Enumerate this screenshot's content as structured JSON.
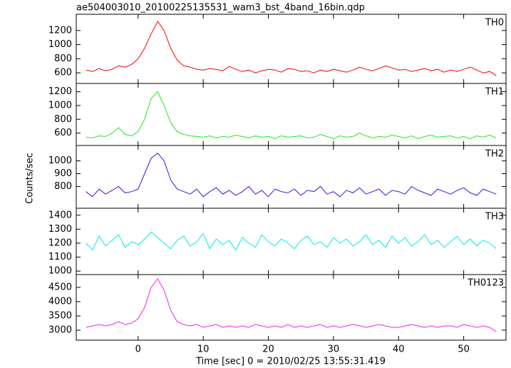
{
  "chart_data": [
    {
      "type": "line",
      "title": "ae504003010_20100225135531_wam3_bst_4band_16bin.qdp",
      "x": [
        -8,
        -7,
        -6,
        -5,
        -4,
        -3,
        -2,
        -1,
        0,
        1,
        2,
        3,
        4,
        5,
        6,
        7,
        8,
        9,
        10,
        11,
        12,
        13,
        14,
        15,
        16,
        17,
        18,
        19,
        20,
        21,
        22,
        23,
        24,
        25,
        26,
        27,
        28,
        29,
        30,
        31,
        32,
        33,
        34,
        35,
        36,
        37,
        38,
        39,
        40,
        41,
        42,
        43,
        44,
        45,
        46,
        47,
        48,
        49,
        50,
        51,
        52,
        53,
        54,
        55
      ],
      "series": [
        {
          "name": "TH0",
          "color": "#ff0000",
          "values": [
            640,
            620,
            660,
            630,
            650,
            700,
            680,
            720,
            800,
            950,
            1150,
            1330,
            1200,
            950,
            780,
            700,
            680,
            650,
            640,
            660,
            650,
            630,
            690,
            650,
            620,
            640,
            600,
            630,
            650,
            640,
            610,
            660,
            650,
            620,
            630,
            600,
            640,
            620,
            650,
            630,
            610,
            640,
            680,
            650,
            630,
            660,
            700,
            670,
            640,
            650,
            620,
            640,
            660,
            630,
            650,
            610,
            640,
            620,
            650,
            680,
            640,
            600,
            620,
            560
          ]
        }
      ],
      "xlim": [
        -9.5,
        56.5
      ],
      "xticks": [
        0,
        10,
        20,
        30,
        40,
        50
      ],
      "ylim": [
        450,
        1430
      ],
      "yticks": [
        600,
        800,
        1000,
        1200
      ]
    },
    {
      "type": "line",
      "x": [
        -8,
        -7,
        -6,
        -5,
        -4,
        -3,
        -2,
        -1,
        0,
        1,
        2,
        3,
        4,
        5,
        6,
        7,
        8,
        9,
        10,
        11,
        12,
        13,
        14,
        15,
        16,
        17,
        18,
        19,
        20,
        21,
        22,
        23,
        24,
        25,
        26,
        27,
        28,
        29,
        30,
        31,
        32,
        33,
        34,
        35,
        36,
        37,
        38,
        39,
        40,
        41,
        42,
        43,
        44,
        45,
        46,
        47,
        48,
        49,
        50,
        51,
        52,
        53,
        54,
        55
      ],
      "series": [
        {
          "name": "TH1",
          "color": "#22e622",
          "values": [
            540,
            530,
            560,
            550,
            600,
            680,
            580,
            560,
            620,
            800,
            1100,
            1200,
            1000,
            750,
            620,
            580,
            560,
            550,
            540,
            560,
            530,
            550,
            540,
            570,
            550,
            530,
            560,
            540,
            550,
            520,
            560,
            540,
            550,
            560,
            530,
            540,
            580,
            550,
            520,
            560,
            540,
            550,
            600,
            560,
            530,
            550,
            540,
            570,
            550,
            530,
            560,
            520,
            550,
            570,
            540,
            550,
            560,
            530,
            550,
            520,
            560,
            540,
            570,
            530
          ]
        }
      ],
      "xlim": [
        -9.5,
        56.5
      ],
      "xticks": [
        0,
        10,
        20,
        30,
        40,
        50
      ],
      "ylim": [
        420,
        1320
      ],
      "yticks": [
        600,
        800,
        1000,
        1200
      ]
    },
    {
      "type": "line",
      "y_label": "Counts/sec",
      "x": [
        -8,
        -7,
        -6,
        -5,
        -4,
        -3,
        -2,
        -1,
        0,
        1,
        2,
        3,
        4,
        5,
        6,
        7,
        8,
        9,
        10,
        11,
        12,
        13,
        14,
        15,
        16,
        17,
        18,
        19,
        20,
        21,
        22,
        23,
        24,
        25,
        26,
        27,
        28,
        29,
        30,
        31,
        32,
        33,
        34,
        35,
        36,
        37,
        38,
        39,
        40,
        41,
        42,
        43,
        44,
        45,
        46,
        47,
        48,
        49,
        50,
        51,
        52,
        53,
        54,
        55
      ],
      "series": [
        {
          "name": "TH2",
          "color": "#2222dd",
          "values": [
            760,
            720,
            780,
            740,
            770,
            800,
            750,
            760,
            780,
            900,
            1020,
            1060,
            1000,
            850,
            780,
            760,
            740,
            780,
            720,
            760,
            790,
            740,
            770,
            730,
            760,
            800,
            740,
            770,
            720,
            780,
            760,
            750,
            780,
            730,
            770,
            760,
            800,
            740,
            760,
            720,
            770,
            750,
            790,
            740,
            760,
            780,
            730,
            770,
            760,
            740,
            800,
            770,
            750,
            730,
            780,
            760,
            740,
            770,
            790,
            750,
            730,
            780,
            760,
            740
          ]
        }
      ],
      "xlim": [
        -9.5,
        56.5
      ],
      "xticks": [
        0,
        10,
        20,
        30,
        40,
        50
      ],
      "ylim": [
        630,
        1120
      ],
      "yticks": [
        800,
        900,
        1000
      ]
    },
    {
      "type": "line",
      "x": [
        -8,
        -7,
        -6,
        -5,
        -4,
        -3,
        -2,
        -1,
        0,
        1,
        2,
        3,
        4,
        5,
        6,
        7,
        8,
        9,
        10,
        11,
        12,
        13,
        14,
        15,
        16,
        17,
        18,
        19,
        20,
        21,
        22,
        23,
        24,
        25,
        26,
        27,
        28,
        29,
        30,
        31,
        32,
        33,
        34,
        35,
        36,
        37,
        38,
        39,
        40,
        41,
        42,
        43,
        44,
        45,
        46,
        47,
        48,
        49,
        50,
        51,
        52,
        53,
        54,
        55
      ],
      "series": [
        {
          "name": "TH3",
          "color": "#00e8e8",
          "values": [
            1200,
            1150,
            1250,
            1180,
            1220,
            1260,
            1170,
            1210,
            1190,
            1230,
            1280,
            1240,
            1200,
            1160,
            1220,
            1250,
            1180,
            1210,
            1270,
            1160,
            1230,
            1190,
            1220,
            1150,
            1240,
            1200,
            1170,
            1260,
            1210,
            1180,
            1230,
            1200,
            1160,
            1220,
            1250,
            1190,
            1210,
            1170,
            1240,
            1200,
            1230,
            1180,
            1210,
            1260,
            1190,
            1220,
            1170,
            1250,
            1200,
            1240,
            1180,
            1210,
            1260,
            1190,
            1220,
            1170,
            1210,
            1250,
            1190,
            1230,
            1180,
            1220,
            1200,
            1160
          ]
        }
      ],
      "xlim": [
        -9.5,
        56.5
      ],
      "xticks": [
        0,
        10,
        20,
        30,
        40,
        50
      ],
      "ylim": [
        975,
        1450
      ],
      "yticks": [
        1000,
        1100,
        1200,
        1300,
        1400
      ]
    },
    {
      "type": "line",
      "x_label": "Time [sec] 0 = 2010/02/25 13:55:31.419",
      "x": [
        -8,
        -7,
        -6,
        -5,
        -4,
        -3,
        -2,
        -1,
        0,
        1,
        2,
        3,
        4,
        5,
        6,
        7,
        8,
        9,
        10,
        11,
        12,
        13,
        14,
        15,
        16,
        17,
        18,
        19,
        20,
        21,
        22,
        23,
        24,
        25,
        26,
        27,
        28,
        29,
        30,
        31,
        32,
        33,
        34,
        35,
        36,
        37,
        38,
        39,
        40,
        41,
        42,
        43,
        44,
        45,
        46,
        47,
        48,
        49,
        50,
        51,
        52,
        53,
        54,
        55
      ],
      "series": [
        {
          "name": "TH0123",
          "color": "#ee22ee",
          "values": [
            3100,
            3150,
            3200,
            3150,
            3200,
            3300,
            3200,
            3250,
            3400,
            3800,
            4500,
            4800,
            4400,
            3700,
            3300,
            3200,
            3150,
            3200,
            3100,
            3150,
            3200,
            3100,
            3150,
            3100,
            3150,
            3100,
            3200,
            3150,
            3100,
            3150,
            3100,
            3200,
            3100,
            3150,
            3100,
            3150,
            3200,
            3100,
            3150,
            3100,
            3150,
            3200,
            3150,
            3100,
            3150,
            3200,
            3150,
            3100,
            3100,
            3150,
            3200,
            3150,
            3100,
            3150,
            3100,
            3150,
            3150,
            3100,
            3200,
            3150,
            3100,
            3150,
            3100,
            2950
          ]
        }
      ],
      "xlim": [
        -9.5,
        56.5
      ],
      "xticks": [
        0,
        10,
        20,
        30,
        40,
        50
      ],
      "ylim": [
        2650,
        4950
      ],
      "yticks": [
        3000,
        3500,
        4000,
        4500
      ]
    }
  ]
}
